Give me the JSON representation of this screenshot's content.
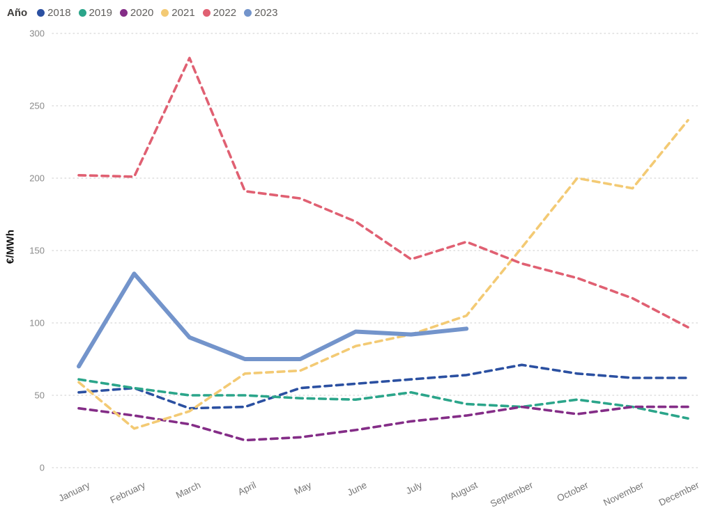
{
  "legend": {
    "title": "Año"
  },
  "chart_data": {
    "type": "line",
    "title": "",
    "xlabel": "",
    "ylabel": "€/MWh",
    "legend_title": "Año",
    "legend_position": "top-left",
    "grid": "horizontal-dotted",
    "ylim": [
      0,
      300
    ],
    "yticks": [
      0,
      50,
      100,
      150,
      200,
      250,
      300
    ],
    "categories": [
      "January",
      "February",
      "March",
      "April",
      "May",
      "June",
      "July",
      "August",
      "September",
      "October",
      "November",
      "December"
    ],
    "series": [
      {
        "name": "2018",
        "color": "#2b50a1",
        "style": "dashed",
        "values": [
          52,
          55,
          41,
          42,
          55,
          58,
          61,
          64,
          71,
          65,
          62,
          62
        ]
      },
      {
        "name": "2019",
        "color": "#2ba58a",
        "style": "dashed",
        "values": [
          61,
          55,
          50,
          50,
          48,
          47,
          52,
          44,
          42,
          47,
          42,
          34
        ]
      },
      {
        "name": "2020",
        "color": "#842d87",
        "style": "dashed",
        "values": [
          41,
          36,
          30,
          19,
          21,
          26,
          32,
          36,
          42,
          37,
          42,
          42
        ]
      },
      {
        "name": "2021",
        "color": "#f3ca74",
        "style": "dashed",
        "values": [
          59,
          27,
          39,
          65,
          67,
          84,
          92,
          105,
          152,
          200,
          193,
          240
        ]
      },
      {
        "name": "2022",
        "color": "#e06072",
        "style": "dashed",
        "values": [
          202,
          201,
          283,
          191,
          186,
          170,
          144,
          156,
          141,
          131,
          117,
          97
        ]
      },
      {
        "name": "2023",
        "color": "#7394cb",
        "style": "solid",
        "values": [
          70,
          134,
          90,
          75,
          75,
          94,
          92,
          96
        ]
      }
    ],
    "axis_colors": {
      "grid": "#d6d6d6",
      "ytick": "#8a8a8a",
      "xtick": "#767676"
    }
  }
}
